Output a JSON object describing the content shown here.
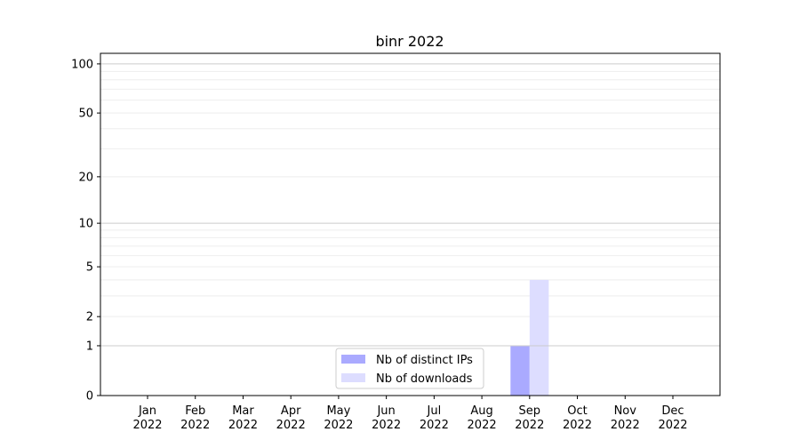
{
  "chart_data": {
    "type": "bar",
    "title": "binr 2022",
    "xlabel": "",
    "ylabel": "",
    "yscale": "log(1+y)",
    "ylim": [
      0,
      116
    ],
    "yticks": [
      0,
      1,
      2,
      5,
      10,
      20,
      50,
      100
    ],
    "grid": true,
    "legend_placement": "bottom-center",
    "categories": [
      "Jan\n2022",
      "Feb\n2022",
      "Mar\n2022",
      "Apr\n2022",
      "May\n2022",
      "Jun\n2022",
      "Jul\n2022",
      "Aug\n2022",
      "Sep\n2022",
      "Oct\n2022",
      "Nov\n2022",
      "Dec\n2022"
    ],
    "series": [
      {
        "name": "Nb of distinct IPs",
        "color": "#aaaaff",
        "values": [
          0,
          0,
          0,
          0,
          0,
          0,
          0,
          0,
          1,
          0,
          0,
          0
        ]
      },
      {
        "name": "Nb of downloads",
        "color": "#ddddff",
        "values": [
          0,
          0,
          0,
          0,
          0,
          0,
          0,
          0,
          4,
          0,
          0,
          0
        ]
      }
    ]
  }
}
